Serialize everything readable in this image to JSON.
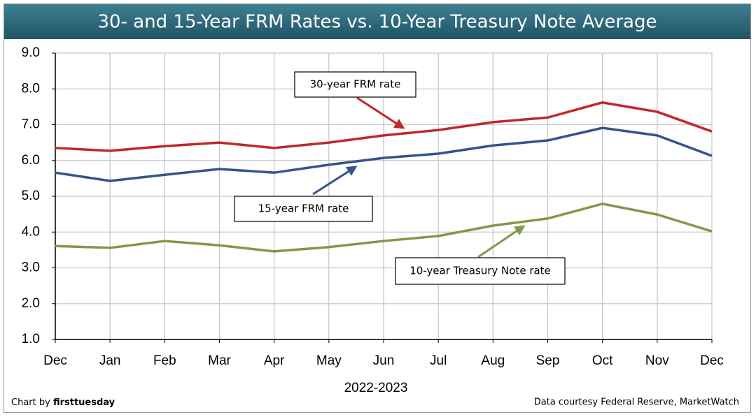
{
  "chart_data": {
    "type": "line",
    "title": "30- and 15-Year FRM Rates vs. 10-Year Treasury Note Average",
    "x_label": "2022-2023",
    "categories": [
      "Dec",
      "Jan",
      "Feb",
      "Mar",
      "Apr",
      "May",
      "Jun",
      "Jul",
      "Aug",
      "Sep",
      "Oct",
      "Nov",
      "Dec"
    ],
    "series": [
      {
        "name": "30-year FRM rate",
        "color": "#c0282a",
        "values": [
          6.35,
          6.27,
          6.4,
          6.5,
          6.35,
          6.5,
          6.7,
          6.85,
          7.07,
          7.2,
          7.62,
          7.36,
          6.81
        ]
      },
      {
        "name": "15-year FRM rate",
        "color": "#34558b",
        "values": [
          5.66,
          5.43,
          5.6,
          5.76,
          5.66,
          5.88,
          6.07,
          6.19,
          6.42,
          6.56,
          6.91,
          6.7,
          6.13
        ]
      },
      {
        "name": "10-year Treasury Note rate",
        "color": "#7f9a48",
        "values": [
          3.61,
          3.56,
          3.75,
          3.63,
          3.46,
          3.58,
          3.75,
          3.89,
          4.18,
          4.38,
          4.79,
          4.49,
          4.02
        ]
      }
    ],
    "ylim": [
      1,
      9
    ],
    "yticks": [
      {
        "value": 1,
        "label": "1.0"
      },
      {
        "value": 2,
        "label": "2.0"
      },
      {
        "value": 3,
        "label": "3.0"
      },
      {
        "value": 4,
        "label": "4.0"
      },
      {
        "value": 5,
        "label": "5.0"
      },
      {
        "value": 6,
        "label": "6.0"
      },
      {
        "value": 7,
        "label": "7.0"
      },
      {
        "value": 8,
        "label": "8.0"
      },
      {
        "value": 9,
        "label": "9.0"
      }
    ],
    "grid": true,
    "credit_prefix": "Chart by",
    "credit": "firsttuesday",
    "source": "Data courtesy Federal Reserve, MarketWatch"
  }
}
